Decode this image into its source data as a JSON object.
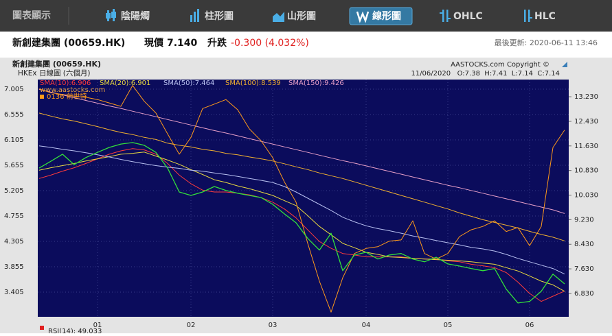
{
  "toolbar": {
    "label": "圖表顯示",
    "tabs": [
      "陰陽燭",
      "柱形圖",
      "山形圖",
      "線形圖",
      "OHLC",
      "HLC"
    ],
    "active_tab": 3
  },
  "header": {
    "name": "新創建集團 (00659.HK)",
    "price_label": "現價",
    "price": "7.140",
    "change_label": "升跌",
    "change": "-0.300 (4.032%)",
    "updated": "最後更新: 2020-06-11 13:46"
  },
  "chart_data": {
    "type": "line",
    "title": "新創建集團 (00659.HK)",
    "subtitle": "HKEx 日線圖 (六個月)",
    "copyright": "AASTOCKS.com Copyright ©",
    "quote": "11/06/2020   O:7.38  H:7.41  L:7.14  C:7.14",
    "watermark": "www.aastocks.com",
    "footer": "RSI(14): 49.033",
    "grid": true,
    "categories": [
      null,
      null,
      null,
      null,
      null,
      "01",
      null,
      null,
      null,
      null,
      null,
      null,
      null,
      "02",
      null,
      null,
      null,
      null,
      null,
      null,
      "03",
      null,
      null,
      null,
      null,
      null,
      null,
      null,
      "04",
      null,
      null,
      null,
      null,
      null,
      null,
      "05",
      null,
      null,
      null,
      null,
      null,
      null,
      "06",
      null,
      null,
      null
    ],
    "ylim": [
      2.967,
      7.175
    ],
    "yticks": [
      3.405,
      3.855,
      4.305,
      4.755,
      5.205,
      5.655,
      6.105,
      6.555,
      7.005
    ],
    "y2lim": [
      6.07,
      13.79
    ],
    "y2ticks": [
      {
        "value": 6.83,
        "label": "6.830"
      },
      {
        "value": 7.63,
        "label": "7.630"
      },
      {
        "value": 8.43,
        "label": "8.430"
      },
      {
        "value": 9.23,
        "label": "9.230"
      },
      {
        "value": 10.03,
        "label": "10.030"
      },
      {
        "value": 10.83,
        "label": "10.830"
      },
      {
        "value": 11.63,
        "label": "11.630"
      },
      {
        "value": 12.43,
        "label": "12.430"
      },
      {
        "value": 13.23,
        "label": "13.230"
      }
    ],
    "series": [
      {
        "name": "SMA(10):6.906",
        "color": "#ff3b3b",
        "axis": "y2",
        "values": [
          10.57,
          10.68,
          10.81,
          10.92,
          11.06,
          11.21,
          11.36,
          11.47,
          11.54,
          11.5,
          11.36,
          11.06,
          10.68,
          10.4,
          10.19,
          10.13,
          10.13,
          10.09,
          10.04,
          9.95,
          9.8,
          9.58,
          9.29,
          8.9,
          8.52,
          8.3,
          8.13,
          8.08,
          8.02,
          8.02,
          8.02,
          8.02,
          7.97,
          7.95,
          7.95,
          7.89,
          7.86,
          7.78,
          7.73,
          7.67,
          7.51,
          7.2,
          6.83,
          6.57,
          6.74,
          6.91
        ]
      },
      {
        "name": "SMA(20):6.901",
        "color": "#e8d840",
        "axis": "y2",
        "values": [
          10.84,
          10.92,
          10.99,
          11.06,
          11.14,
          11.21,
          11.28,
          11.36,
          11.39,
          11.43,
          11.3,
          11.17,
          11.03,
          10.86,
          10.7,
          10.53,
          10.44,
          10.33,
          10.24,
          10.13,
          10.02,
          9.85,
          9.69,
          9.36,
          9.01,
          8.74,
          8.46,
          8.32,
          8.17,
          8.1,
          8.02,
          8.0,
          7.97,
          7.95,
          7.93,
          7.91,
          7.89,
          7.86,
          7.82,
          7.78,
          7.67,
          7.56,
          7.4,
          7.23,
          7.11,
          6.9
        ]
      },
      {
        "name": "SMA(50):7.464",
        "color": "#b8c0f0",
        "axis": "y2",
        "values": [
          11.63,
          11.58,
          11.52,
          11.47,
          11.41,
          11.34,
          11.27,
          11.19,
          11.12,
          11.05,
          10.99,
          10.94,
          10.9,
          10.84,
          10.81,
          10.75,
          10.7,
          10.64,
          10.57,
          10.51,
          10.44,
          10.31,
          10.13,
          9.93,
          9.73,
          9.53,
          9.31,
          9.16,
          9.03,
          8.94,
          8.87,
          8.79,
          8.7,
          8.63,
          8.55,
          8.48,
          8.41,
          8.33,
          8.28,
          8.21,
          8.1,
          7.97,
          7.86,
          7.75,
          7.64,
          7.46
        ]
      },
      {
        "name": "SMA(100):8.539",
        "color": "#f0b030",
        "axis": "y2",
        "values": [
          12.7,
          12.6,
          12.51,
          12.44,
          12.35,
          12.26,
          12.16,
          12.07,
          12.0,
          11.91,
          11.84,
          11.72,
          11.65,
          11.6,
          11.52,
          11.47,
          11.39,
          11.34,
          11.27,
          11.21,
          11.14,
          11.05,
          10.95,
          10.86,
          10.75,
          10.66,
          10.57,
          10.46,
          10.35,
          10.24,
          10.13,
          10.02,
          9.91,
          9.8,
          9.69,
          9.58,
          9.45,
          9.34,
          9.23,
          9.14,
          9.05,
          8.96,
          8.85,
          8.75,
          8.66,
          8.54
        ]
      },
      {
        "name": "SMA(150):9.426",
        "color": "#e8a0c8",
        "axis": "y2",
        "values": [
          13.47,
          13.38,
          13.29,
          13.2,
          13.11,
          13.02,
          12.93,
          12.85,
          12.76,
          12.67,
          12.58,
          12.49,
          12.4,
          12.31,
          12.22,
          12.13,
          12.05,
          11.96,
          11.87,
          11.78,
          11.69,
          11.6,
          11.51,
          11.42,
          11.33,
          11.24,
          11.15,
          11.07,
          10.98,
          10.89,
          10.8,
          10.71,
          10.62,
          10.53,
          10.44,
          10.35,
          10.27,
          10.18,
          10.09,
          10.0,
          9.91,
          9.82,
          9.73,
          9.64,
          9.55,
          9.43
        ]
      },
      {
        "name": "0136 前世特",
        "color": "#ff9a1a",
        "axis": "y",
        "values": [
          7.01,
          6.94,
          6.91,
          6.88,
          6.86,
          6.82,
          6.76,
          6.7,
          7.07,
          6.79,
          6.58,
          6.21,
          5.85,
          6.15,
          6.66,
          6.74,
          6.82,
          6.64,
          6.3,
          6.09,
          5.79,
          5.36,
          5.0,
          4.27,
          3.6,
          3.05,
          3.66,
          4.09,
          4.18,
          4.21,
          4.31,
          4.33,
          4.67,
          4.09,
          3.99,
          4.09,
          4.39,
          4.51,
          4.57,
          4.67,
          4.48,
          4.55,
          4.23,
          4.57,
          5.97,
          6.28
        ]
      },
      {
        "color": "#33e03a",
        "axis": "y2",
        "values": [
          10.91,
          11.13,
          11.36,
          11.02,
          11.25,
          11.42,
          11.58,
          11.69,
          11.74,
          11.65,
          11.42,
          10.91,
          10.13,
          10.02,
          10.13,
          10.31,
          10.18,
          10.09,
          10.02,
          9.95,
          9.73,
          9.42,
          9.13,
          8.62,
          8.24,
          8.79,
          7.57,
          8.08,
          8.17,
          7.95,
          8.08,
          8.13,
          7.95,
          7.86,
          8.01,
          7.79,
          7.72,
          7.64,
          7.57,
          7.64,
          6.97,
          6.52,
          6.57,
          6.9,
          7.46,
          7.14
        ]
      }
    ]
  }
}
